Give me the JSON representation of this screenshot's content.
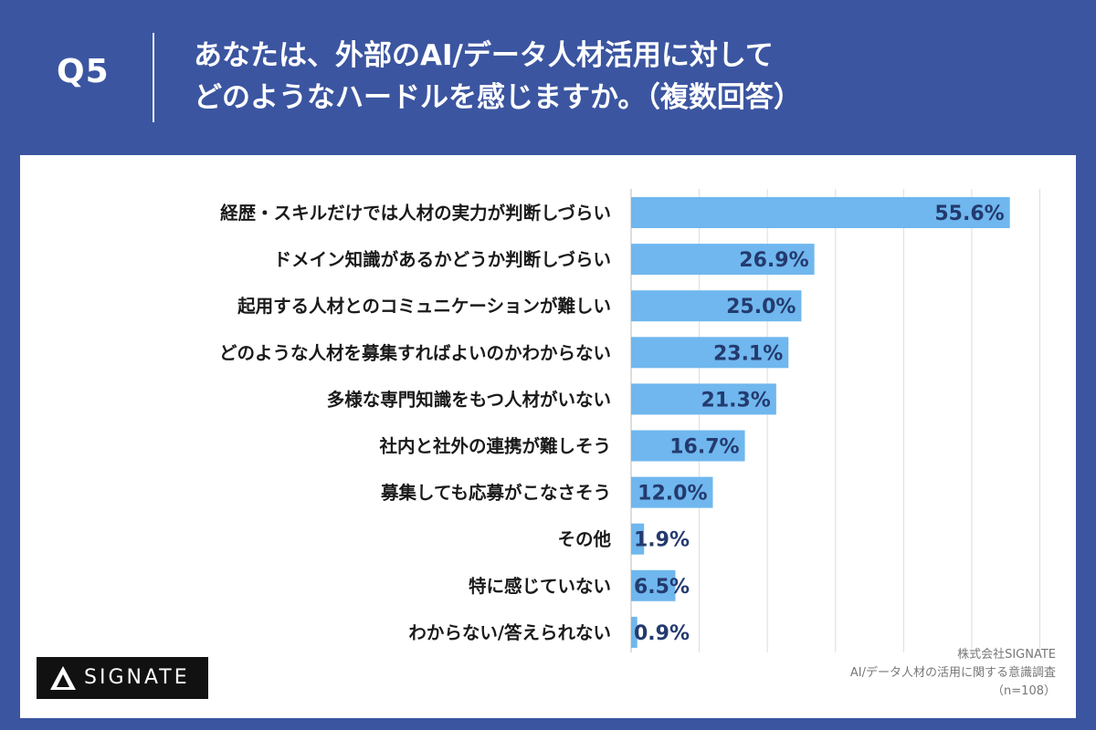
{
  "header": {
    "question_number": "Q5",
    "title_line1": "あなたは、外部のAI/データ人材活用に対して",
    "title_line2": "どのようなハードルを感じますか。（複数回答）"
  },
  "chart_data": {
    "type": "bar",
    "orientation": "horizontal",
    "categories": [
      "経歴・スキルだけでは人材の実力が判断しづらい",
      "ドメイン知識があるかどうか判断しづらい",
      "起用する人材とのコミュニケーションが難しい",
      "どのような人材を募集すればよいのかわからない",
      "多様な専門知識をもつ人材がいない",
      "社内と社外の連携が難しそう",
      "募集しても応募がこなさそう",
      "その他",
      "特に感じていない",
      "わからない/答えられない"
    ],
    "values": [
      55.6,
      26.9,
      25.0,
      23.1,
      21.3,
      16.7,
      12.0,
      1.9,
      6.5,
      0.9
    ],
    "value_labels": [
      "55.6%",
      "26.9%",
      "25.0%",
      "23.1%",
      "21.3%",
      "16.7%",
      "12.0%",
      "1.9%",
      "6.5%",
      "0.9%"
    ],
    "xlim": [
      0,
      60
    ],
    "grid": true,
    "bar_color": "#6fb7ee",
    "grid_color": "#dddddd"
  },
  "branding": {
    "logo_text": "SIGNATE"
  },
  "footer": {
    "company": "株式会社SIGNATE",
    "survey": "AI/データ人材の活用に関する意識調査",
    "sample": "（n=108）"
  }
}
